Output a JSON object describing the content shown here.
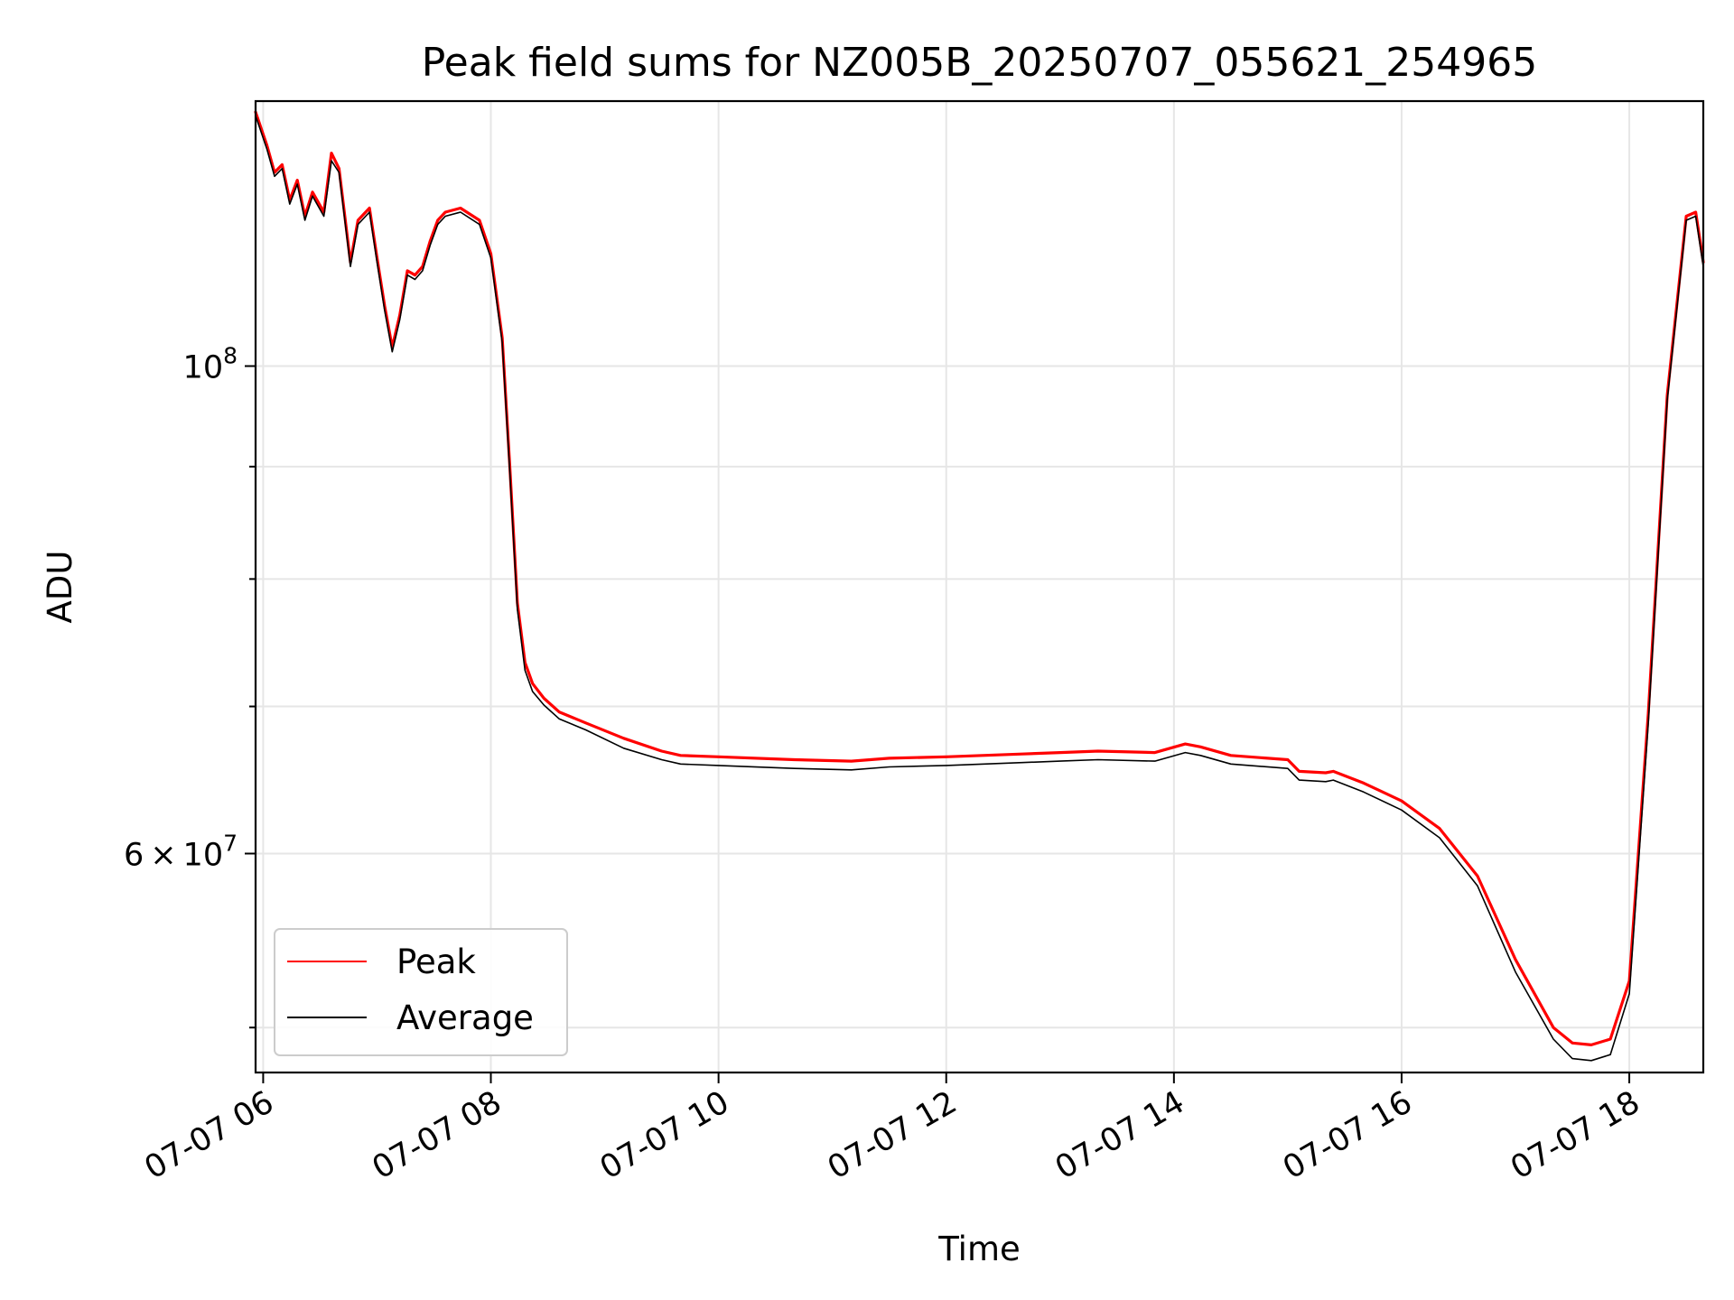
{
  "chart_data": {
    "type": "line",
    "title": "Peak field sums for NZ005B_20250707_055621_254965",
    "xlabel": "Time",
    "ylabel": "ADU",
    "yscale": "log",
    "xlim": [
      "2025-07-07 05:56",
      "2025-07-07 18:39"
    ],
    "ylim": [
      47700000,
      132000000
    ],
    "grid": true,
    "legend": "lower-left",
    "x_ticks": [
      {
        "value": "2025-07-07 06:00",
        "label": "07-07 06"
      },
      {
        "value": "2025-07-07 08:00",
        "label": "07-07 08"
      },
      {
        "value": "2025-07-07 10:00",
        "label": "07-07 10"
      },
      {
        "value": "2025-07-07 12:00",
        "label": "07-07 12"
      },
      {
        "value": "2025-07-07 14:00",
        "label": "07-07 14"
      },
      {
        "value": "2025-07-07 16:00",
        "label": "07-07 16"
      },
      {
        "value": "2025-07-07 18:00",
        "label": "07-07 18"
      }
    ],
    "y_ticks": [
      {
        "value": 100000000,
        "base": "10",
        "exp": "8"
      },
      {
        "value": 60000000,
        "coef": "6",
        "times": "×",
        "base": "10",
        "exp": "7"
      }
    ],
    "y_minor_ticks": [
      50000000,
      70000000,
      80000000,
      90000000
    ],
    "x": [
      "2025-07-07 05:56",
      "2025-07-07 06:02",
      "2025-07-07 06:06",
      "2025-07-07 06:10",
      "2025-07-07 06:14",
      "2025-07-07 06:18",
      "2025-07-07 06:22",
      "2025-07-07 06:26",
      "2025-07-07 06:32",
      "2025-07-07 06:36",
      "2025-07-07 06:40",
      "2025-07-07 06:46",
      "2025-07-07 06:50",
      "2025-07-07 06:56",
      "2025-07-07 07:00",
      "2025-07-07 07:04",
      "2025-07-07 07:08",
      "2025-07-07 07:12",
      "2025-07-07 07:16",
      "2025-07-07 07:20",
      "2025-07-07 07:24",
      "2025-07-07 07:28",
      "2025-07-07 07:32",
      "2025-07-07 07:36",
      "2025-07-07 07:44",
      "2025-07-07 07:54",
      "2025-07-07 08:00",
      "2025-07-07 08:06",
      "2025-07-07 08:10",
      "2025-07-07 08:14",
      "2025-07-07 08:18",
      "2025-07-07 08:22",
      "2025-07-07 08:28",
      "2025-07-07 08:36",
      "2025-07-07 08:50",
      "2025-07-07 09:10",
      "2025-07-07 09:30",
      "2025-07-07 09:40",
      "2025-07-07 10:00",
      "2025-07-07 10:40",
      "2025-07-07 11:10",
      "2025-07-07 11:30",
      "2025-07-07 12:00",
      "2025-07-07 12:40",
      "2025-07-07 13:00",
      "2025-07-07 13:20",
      "2025-07-07 13:50",
      "2025-07-07 14:06",
      "2025-07-07 14:14",
      "2025-07-07 14:30",
      "2025-07-07 15:00",
      "2025-07-07 15:06",
      "2025-07-07 15:20",
      "2025-07-07 15:24",
      "2025-07-07 15:40",
      "2025-07-07 16:00",
      "2025-07-07 16:20",
      "2025-07-07 16:40",
      "2025-07-07 17:00",
      "2025-07-07 17:20",
      "2025-07-07 17:30",
      "2025-07-07 17:40",
      "2025-07-07 17:50",
      "2025-07-07 18:00",
      "2025-07-07 18:10",
      "2025-07-07 18:20",
      "2025-07-07 18:30",
      "2025-07-07 18:35",
      "2025-07-07 18:39"
    ],
    "series": [
      {
        "name": "Peak",
        "color": "#ff0000",
        "values": [
          130500000,
          126000000,
          122500000,
          123500000,
          119000000,
          121500000,
          117000000,
          120000000,
          117500000,
          125000000,
          123000000,
          111500000,
          116500000,
          118000000,
          112000000,
          106500000,
          102000000,
          105500000,
          110500000,
          110000000,
          111000000,
          114000000,
          116500000,
          117500000,
          118000000,
          116500000,
          112500000,
          103000000,
          90000000,
          78000000,
          73300000,
          71700000,
          70600000,
          69600000,
          68800000,
          67700000,
          66800000,
          66500000,
          66400000,
          66200000,
          66100000,
          66300000,
          66400000,
          66600000,
          66700000,
          66800000,
          66700000,
          67300000,
          67100000,
          66500000,
          66200000,
          65400000,
          65300000,
          65400000,
          64600000,
          63400000,
          61600000,
          58600000,
          53700000,
          50000000,
          49200000,
          49100000,
          49400000,
          52500000,
          69500000,
          97000000,
          117000000,
          117500000,
          111500000
        ]
      },
      {
        "name": "Average",
        "color": "#000000",
        "values": [
          130000000,
          125500000,
          122000000,
          123000000,
          118500000,
          121000000,
          116500000,
          119500000,
          117000000,
          124000000,
          122500000,
          111000000,
          116000000,
          117500000,
          111500000,
          106000000,
          101500000,
          105000000,
          110000000,
          109500000,
          110500000,
          113500000,
          116000000,
          117000000,
          117500000,
          116000000,
          112000000,
          102500000,
          89500000,
          77500000,
          72700000,
          71100000,
          70100000,
          69100000,
          68300000,
          67000000,
          66200000,
          65900000,
          65800000,
          65600000,
          65500000,
          65700000,
          65800000,
          66000000,
          66100000,
          66200000,
          66100000,
          66700000,
          66500000,
          65900000,
          65600000,
          64800000,
          64700000,
          64800000,
          64000000,
          62800000,
          61000000,
          58000000,
          53000000,
          49400000,
          48400000,
          48300000,
          48600000,
          51800000,
          68800000,
          96500000,
          116500000,
          117000000,
          111000000
        ]
      }
    ]
  }
}
